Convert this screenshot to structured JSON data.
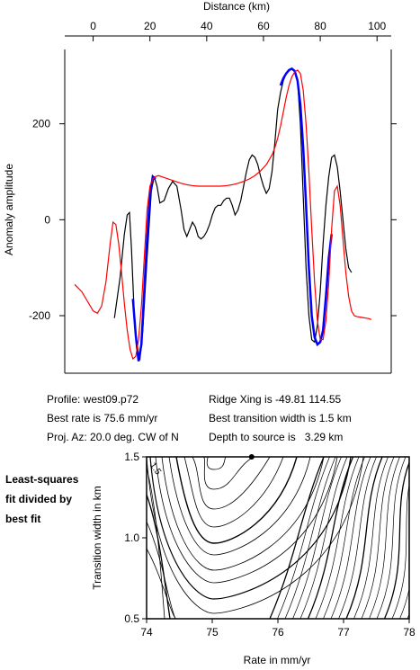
{
  "chart_data": [
    {
      "type": "line",
      "xlabel": "Distance (km)",
      "ylabel": "Anomaly amplitude",
      "xlim": [
        -10,
        105
      ],
      "ylim": [
        -320,
        355
      ],
      "xticks": [
        0,
        20,
        40,
        60,
        80,
        100
      ],
      "yticks": [
        -200,
        0,
        200
      ],
      "grid": false,
      "series": [
        {
          "color": "#000000",
          "x": [
            7.5,
            9.5,
            11,
            12,
            12.8,
            13.5,
            14.5,
            15.5,
            16.5,
            17.5,
            19,
            20.5,
            21.5,
            22.5,
            23.5,
            25,
            26.5,
            28,
            29.5,
            31,
            32,
            33,
            34,
            35,
            36,
            37,
            38,
            39,
            40,
            41,
            42,
            43,
            44,
            45,
            46,
            47,
            48,
            49,
            50,
            51,
            52,
            53,
            54,
            55,
            56,
            57,
            58,
            59,
            60,
            61,
            62,
            63,
            64,
            65,
            66,
            67,
            68,
            69,
            70,
            71,
            72,
            73,
            74,
            75,
            76,
            77,
            78,
            79,
            80,
            81,
            82,
            83,
            84,
            85,
            86,
            87,
            88,
            89,
            90,
            91
          ],
          "y": [
            -205,
            -120,
            -30,
            10,
            15,
            -60,
            -200,
            -280,
            -290,
            -230,
            -80,
            60,
            90,
            70,
            35,
            40,
            65,
            80,
            70,
            20,
            -20,
            -35,
            -20,
            -5,
            -15,
            -35,
            -40,
            -35,
            -25,
            -10,
            10,
            25,
            30,
            30,
            40,
            45,
            45,
            30,
            10,
            20,
            40,
            70,
            100,
            125,
            135,
            130,
            115,
            90,
            70,
            55,
            65,
            100,
            160,
            230,
            265,
            290,
            305,
            312,
            315,
            310,
            290,
            200,
            50,
            -100,
            -200,
            -250,
            -255,
            -220,
            -150,
            -50,
            30,
            90,
            130,
            135,
            110,
            60,
            0,
            -60,
            -100,
            -110
          ]
        },
        {
          "color": "#0000ff",
          "x": [
            14,
            15,
            16,
            17,
            18,
            19,
            20,
            21,
            22,
            66,
            67,
            68,
            69,
            70,
            71,
            72,
            73,
            74,
            75,
            76,
            77,
            78,
            79,
            80,
            81,
            82,
            83,
            84
          ],
          "y": [
            -165,
            -240,
            -295,
            -260,
            -150,
            -40,
            50,
            90,
            85,
            280,
            295,
            305,
            312,
            315,
            310,
            290,
            240,
            150,
            30,
            -100,
            -200,
            -245,
            -260,
            -255,
            -230,
            -160,
            -80,
            -30
          ]
        },
        {
          "color": "#ff0000",
          "x": [
            -6.5,
            -4,
            -2,
            0,
            1.5,
            3,
            4.5,
            6,
            7,
            8,
            9,
            10,
            11,
            12,
            13,
            14,
            15,
            16,
            17,
            18,
            19,
            20,
            21,
            22,
            23,
            24,
            25,
            27,
            29,
            31,
            33,
            35,
            37,
            39,
            41,
            43,
            45,
            47,
            49,
            51,
            53,
            55,
            57,
            59,
            61,
            63,
            64,
            65,
            66,
            67,
            68,
            69,
            70,
            71,
            72,
            73,
            74,
            75,
            76,
            77,
            78,
            79,
            80,
            81,
            82,
            83,
            84,
            85,
            86,
            87,
            88,
            89,
            90,
            91,
            92,
            93,
            94,
            95,
            96,
            97,
            98
          ],
          "y": [
            -135,
            -150,
            -170,
            -190,
            -195,
            -180,
            -130,
            -50,
            -5,
            -10,
            -50,
            -110,
            -175,
            -230,
            -270,
            -290,
            -285,
            -250,
            -180,
            -80,
            20,
            70,
            85,
            90,
            92,
            90,
            88,
            84,
            80,
            76,
            73,
            71,
            70,
            70,
            70,
            70,
            70,
            71,
            73,
            76,
            80,
            85,
            92,
            102,
            115,
            135,
            150,
            170,
            195,
            225,
            255,
            280,
            298,
            308,
            312,
            305,
            270,
            200,
            100,
            -20,
            -130,
            -210,
            -250,
            -250,
            -210,
            -130,
            -20,
            60,
            70,
            30,
            -40,
            -110,
            -160,
            -190,
            -200,
            -202,
            -203,
            -204,
            -205,
            -206,
            -208
          ]
        }
      ],
      "dot_markers": []
    },
    {
      "type": "contour",
      "xlabel": "Rate in mm/yr",
      "ylabel": "Transition width in km",
      "xlim": [
        74,
        78
      ],
      "ylim": [
        0.5,
        1.5
      ],
      "xticks": [
        "74",
        "75",
        "76",
        "77",
        "78"
      ],
      "yticks": [
        "0.5",
        "1.0",
        "1.5"
      ],
      "contour_label": "1.5",
      "best_fit": {
        "x": 75.6,
        "y": 1.5
      },
      "grid": false
    }
  ],
  "info": {
    "profile": "Profile: west09.p72",
    "ridge": "Ridge Xing is -49.81 114.55",
    "best_rate": "Best rate is 75.6 mm/yr",
    "best_width": "Best transition width is 1.5 km",
    "proj": "Proj. Az: 20.0 deg. CW of N",
    "depth": "Depth to source is   3.29 km"
  },
  "side_note": "Least-squares fit divided by best fit"
}
